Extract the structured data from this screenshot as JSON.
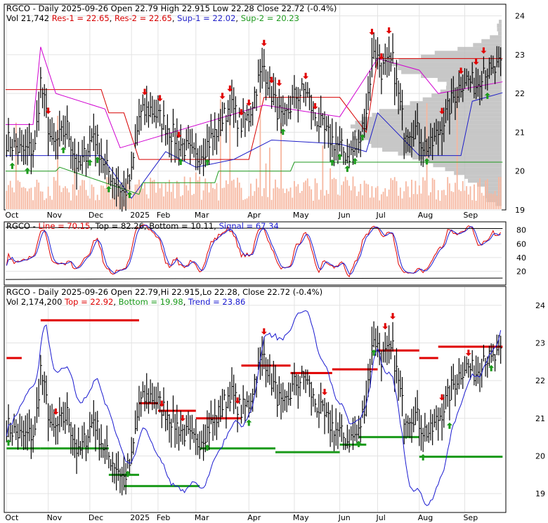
{
  "colors": {
    "price_bar": "#000000",
    "volume_bar": "#f6b7a0",
    "res_line": "#d70000",
    "sup_line": "#1f1fc8",
    "sup2_line": "#1f9a1f",
    "res2_line": "#d000d0",
    "up_arrow": "#1a9a1a",
    "down_arrow": "#e00000",
    "stoch_line": "#e00000",
    "stoch_signal": "#1a1ad0",
    "trend_line": "#1a1ad0",
    "top_line": "#e00000",
    "bottom_line": "#1a9a1a",
    "grid": "#e3e3e3",
    "volume_profile": "#bdbdbd"
  },
  "chart_data": [
    {
      "type": "candlestick",
      "panel": "price",
      "header": {
        "ticker": "RGCO",
        "line1_rest": " - Daily 2025-09-26 Open 22.79  High 22.915  Low 22.28  Close 22.72 (-0.4%)",
        "vol": "Vol 21,742 ",
        "res1": "Res-1 = 22.65",
        "res2": "Res-2 = 22.65",
        "sup1": "Sup-1 = 22.02",
        "sup2": "Sup-2 = 20.23"
      },
      "y_ticks": [
        "24",
        "23",
        "22",
        "21",
        "20",
        "19"
      ],
      "y_tick_values": [
        24,
        23,
        22,
        21,
        20,
        19
      ],
      "ylim": [
        19,
        24.3
      ],
      "x_labels": [
        "Oct",
        "Nov",
        "Dec",
        "2025",
        "Feb",
        "Mar",
        "Apr",
        "May",
        "Jun",
        "Jul",
        "Aug",
        "Sep"
      ],
      "x_label_index": [
        0,
        22,
        44,
        66,
        80,
        100,
        128,
        152,
        176,
        196,
        218,
        242
      ],
      "close_anchors": [
        [
          0,
          20.8
        ],
        [
          8,
          20.5
        ],
        [
          15,
          20.6
        ],
        [
          18,
          22.3
        ],
        [
          24,
          20.6
        ],
        [
          32,
          21.1
        ],
        [
          38,
          20.0
        ],
        [
          46,
          21.0
        ],
        [
          52,
          20.1
        ],
        [
          57,
          19.8
        ],
        [
          62,
          19.4
        ],
        [
          66,
          19.9
        ],
        [
          70,
          21.4
        ],
        [
          76,
          21.6
        ],
        [
          84,
          21.2
        ],
        [
          90,
          20.8
        ],
        [
          100,
          20.3
        ],
        [
          106,
          20.7
        ],
        [
          112,
          21.1
        ],
        [
          118,
          21.7
        ],
        [
          124,
          21.2
        ],
        [
          128,
          21.4
        ],
        [
          132,
          22.2
        ],
        [
          136,
          22.7
        ],
        [
          140,
          22.0
        ],
        [
          146,
          21.2
        ],
        [
          152,
          21.9
        ],
        [
          158,
          22.1
        ],
        [
          162,
          21.5
        ],
        [
          168,
          21.0
        ],
        [
          174,
          20.7
        ],
        [
          180,
          20.4
        ],
        [
          186,
          20.6
        ],
        [
          190,
          21.6
        ],
        [
          194,
          23.2
        ],
        [
          198,
          22.6
        ],
        [
          204,
          22.8
        ],
        [
          210,
          21.1
        ],
        [
          216,
          21.1
        ],
        [
          220,
          20.7
        ],
        [
          224,
          20.6
        ],
        [
          230,
          21.2
        ],
        [
          236,
          21.9
        ],
        [
          242,
          22.4
        ],
        [
          248,
          22.2
        ],
        [
          252,
          22.7
        ],
        [
          256,
          22.5
        ],
        [
          261,
          22.7
        ]
      ],
      "annotations": {
        "res1": [
          22.65,
          22.65
        ],
        "res2": [
          22.65,
          22.65
        ],
        "sup1": 22.02,
        "sup2": 20.23
      }
    },
    {
      "type": "line",
      "panel": "stochastic",
      "header": {
        "ticker": "RGCO",
        "sep": " - ",
        "line": "Line = 70.15",
        "top": "Top = 82.26",
        "bottom": "Bottom = 10.11",
        "signal": "Signal = 67.34"
      },
      "y_ticks": [
        "80",
        "60",
        "40",
        "20"
      ],
      "y_tick_values": [
        80,
        60,
        40,
        20
      ],
      "ylim": [
        0,
        92
      ],
      "series": [
        {
          "name": "Line",
          "last": 70.15
        },
        {
          "name": "Signal",
          "last": 67.34
        },
        {
          "name": "Top",
          "last": 82.26
        },
        {
          "name": "Bottom",
          "last": 10.11
        }
      ]
    },
    {
      "type": "candlestick",
      "panel": "price-trend",
      "header": {
        "ticker": "RGCO",
        "line1_rest": " - Daily 2025-09-26 Open 22.79,Hi 22.915,Lo 22.28,  Close 22.72 (-0.4%)",
        "vol": "Vol 2,174,200 ",
        "top": "Top = 22.92",
        "bottom": "Bottom = 19.98",
        "trend": "Trend = 23.86"
      },
      "y_ticks": [
        "24",
        "23",
        "22",
        "21",
        "20",
        "19"
      ],
      "y_tick_values": [
        24,
        23,
        22,
        21,
        20,
        19
      ],
      "ylim": [
        18.5,
        24.5
      ],
      "x_labels": [
        "Oct",
        "Nov",
        "Dec",
        "2025",
        "Feb",
        "Mar",
        "Apr",
        "May",
        "Jun",
        "Jul",
        "Aug",
        "Sep"
      ],
      "x_label_index": [
        0,
        22,
        44,
        66,
        80,
        100,
        128,
        152,
        176,
        196,
        218,
        242
      ],
      "top_levels": [
        [
          0,
          8,
          22.6
        ],
        [
          18,
          70,
          23.6
        ],
        [
          70,
          80,
          21.4
        ],
        [
          80,
          100,
          21.2
        ],
        [
          100,
          124,
          21.0
        ],
        [
          124,
          150,
          22.4
        ],
        [
          150,
          172,
          22.2
        ],
        [
          172,
          186,
          22.3
        ],
        [
          186,
          196,
          22.3
        ],
        [
          196,
          218,
          22.8
        ],
        [
          218,
          228,
          22.6
        ],
        [
          228,
          262,
          22.9
        ]
      ],
      "bottom_levels": [
        [
          0,
          18,
          20.2
        ],
        [
          18,
          54,
          20.2
        ],
        [
          54,
          70,
          19.5
        ],
        [
          62,
          102,
          19.2
        ],
        [
          102,
          142,
          20.2
        ],
        [
          142,
          176,
          20.1
        ],
        [
          176,
          190,
          20.3
        ],
        [
          186,
          218,
          20.5
        ],
        [
          218,
          262,
          19.98
        ]
      ],
      "trend_last": 23.86
    }
  ]
}
